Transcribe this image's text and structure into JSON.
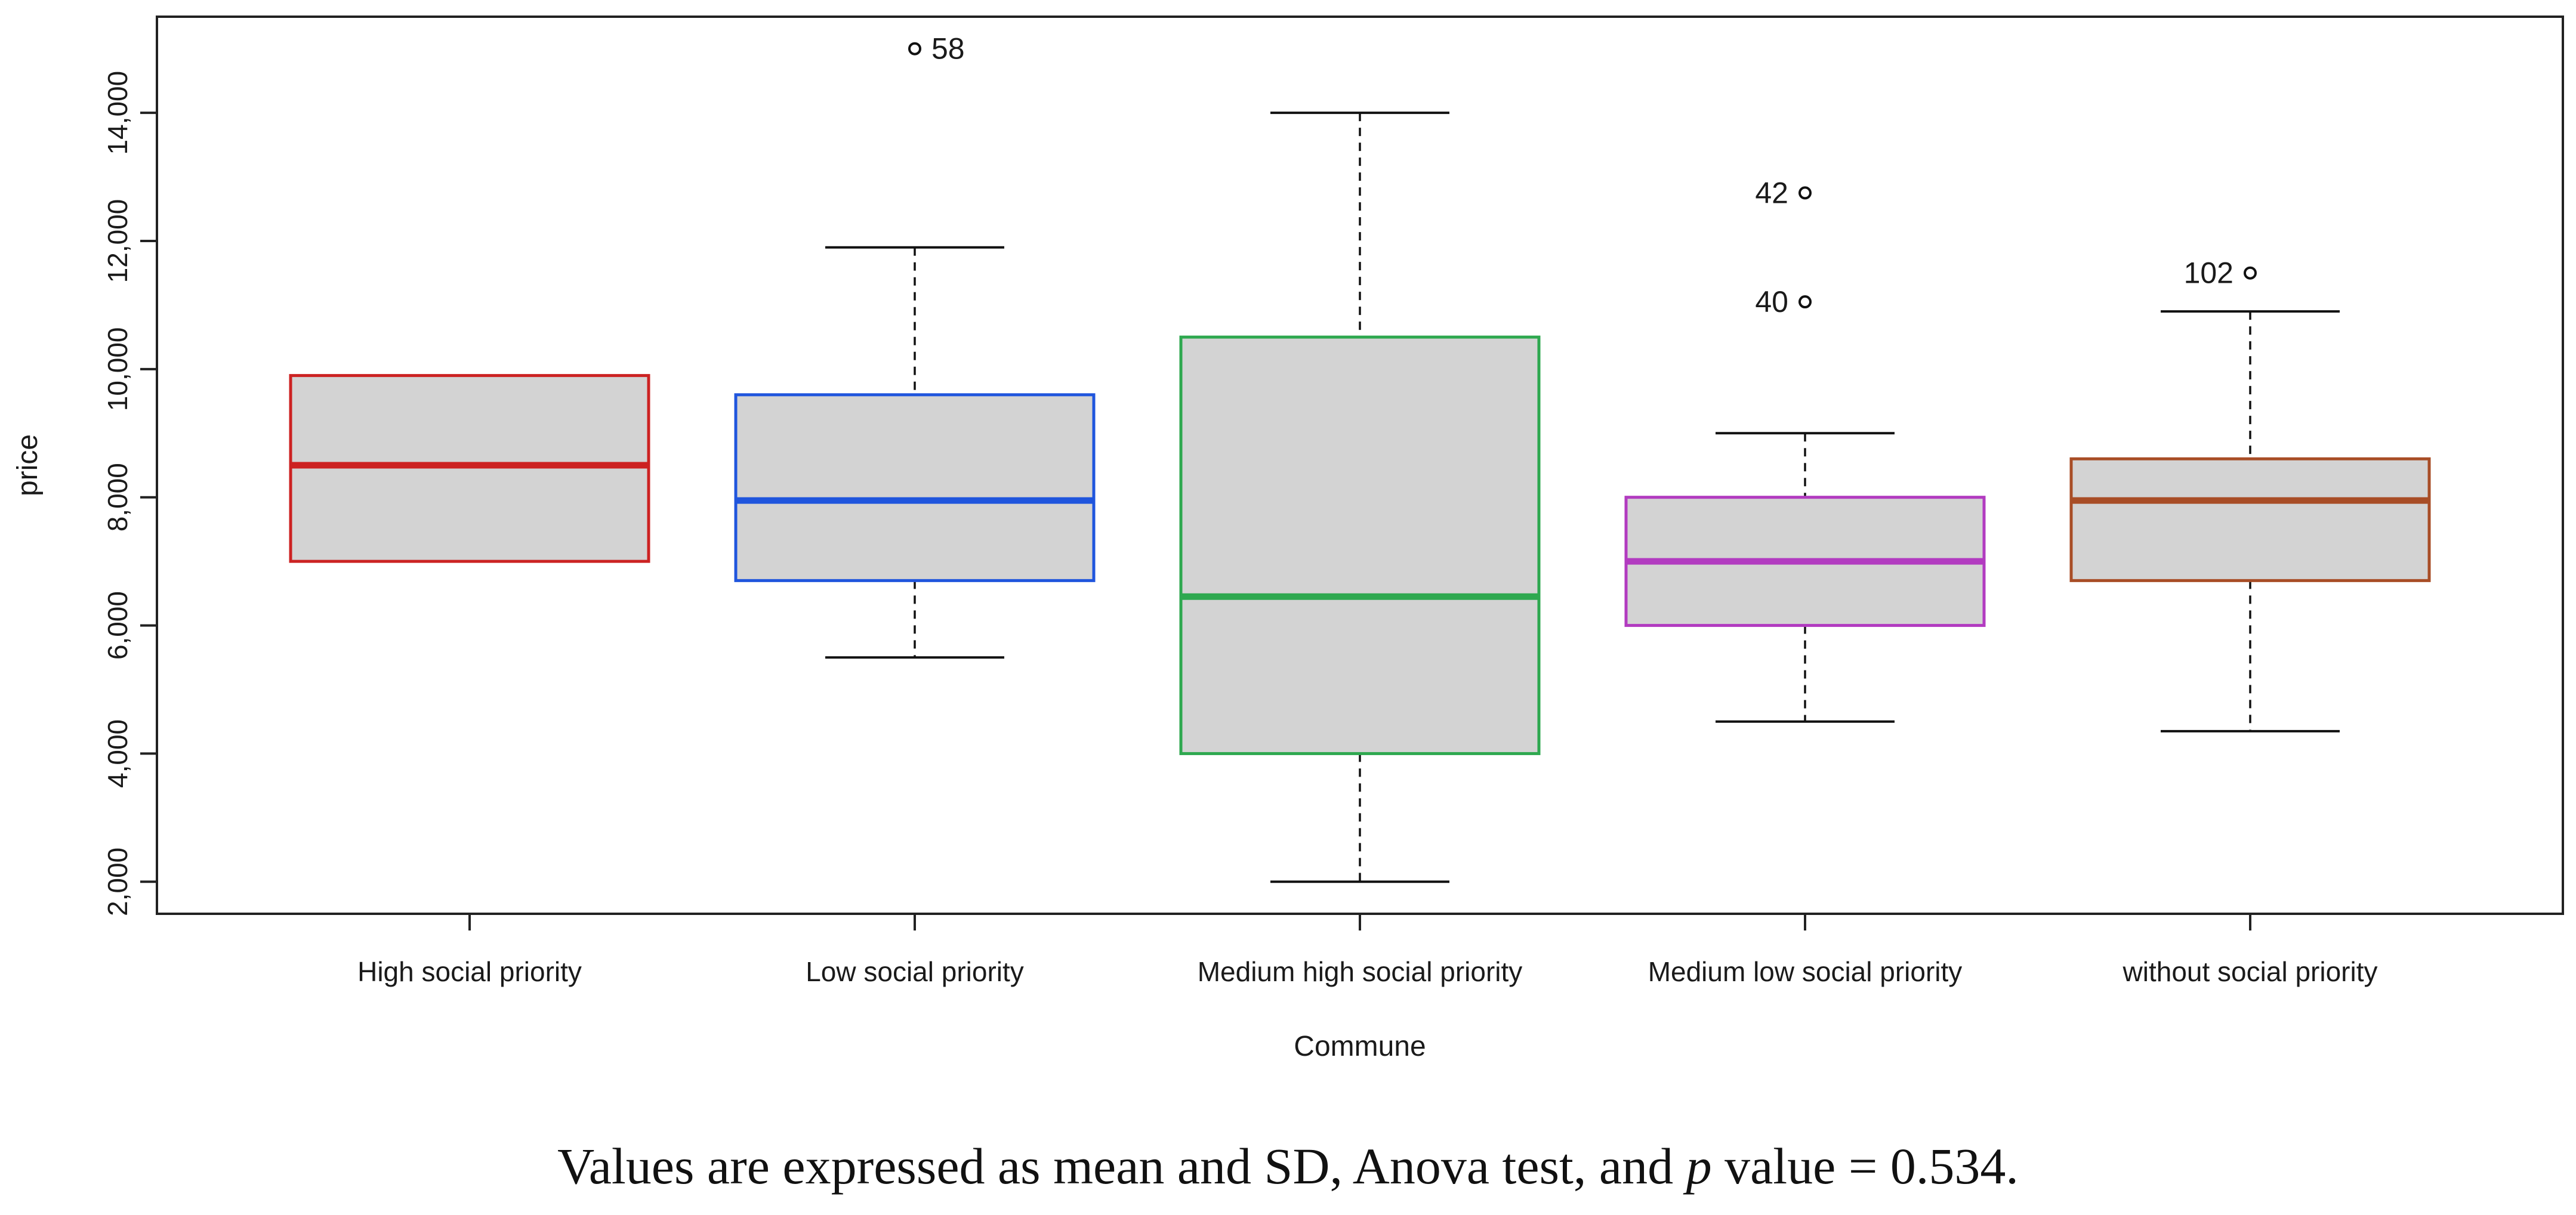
{
  "chart_data": {
    "type": "boxplot",
    "xlabel": "Commune",
    "ylabel": "price",
    "ylim": [
      1500,
      15500
    ],
    "yticks": [
      2000,
      4000,
      6000,
      8000,
      10000,
      12000,
      14000
    ],
    "ytick_labels": [
      "2,000",
      "4,000",
      "6,000",
      "8,000",
      "10,000",
      "12,000",
      "14,000"
    ],
    "groups": [
      {
        "name": "High social priority",
        "color": "#cc2222",
        "whisker_low": 7000,
        "q1": 7000,
        "median": 8500,
        "q3": 9900,
        "whisker_high": 9900,
        "outliers": []
      },
      {
        "name": "Low social priority",
        "color": "#1f55dd",
        "whisker_low": 5500,
        "q1": 6700,
        "median": 7950,
        "q3": 9600,
        "whisker_high": 11900,
        "outliers": [
          {
            "value": 15000,
            "label": "58",
            "label_side": "right"
          }
        ]
      },
      {
        "name": "Medium high social priority",
        "color": "#2ea84f",
        "whisker_low": 2000,
        "q1": 4000,
        "median": 6450,
        "q3": 10500,
        "whisker_high": 14000,
        "outliers": []
      },
      {
        "name": "Medium low social priority",
        "color": "#b23bc0",
        "whisker_low": 4500,
        "q1": 6000,
        "median": 7000,
        "q3": 8000,
        "whisker_high": 9000,
        "outliers": [
          {
            "value": 11050,
            "label": "40",
            "label_side": "left"
          },
          {
            "value": 12750,
            "label": "42",
            "label_side": "left"
          }
        ]
      },
      {
        "name": "without social priority",
        "color": "#a84d26",
        "whisker_low": 4350,
        "q1": 6700,
        "median": 7950,
        "q3": 8600,
        "whisker_high": 10900,
        "outliers": [
          {
            "value": 11500,
            "label": "102",
            "label_side": "left"
          }
        ]
      }
    ]
  },
  "caption": {
    "text_before": "Values are expressed as mean and SD, Anova test, and ",
    "italic_symbol": "p",
    "text_after": " value = 0.534."
  }
}
